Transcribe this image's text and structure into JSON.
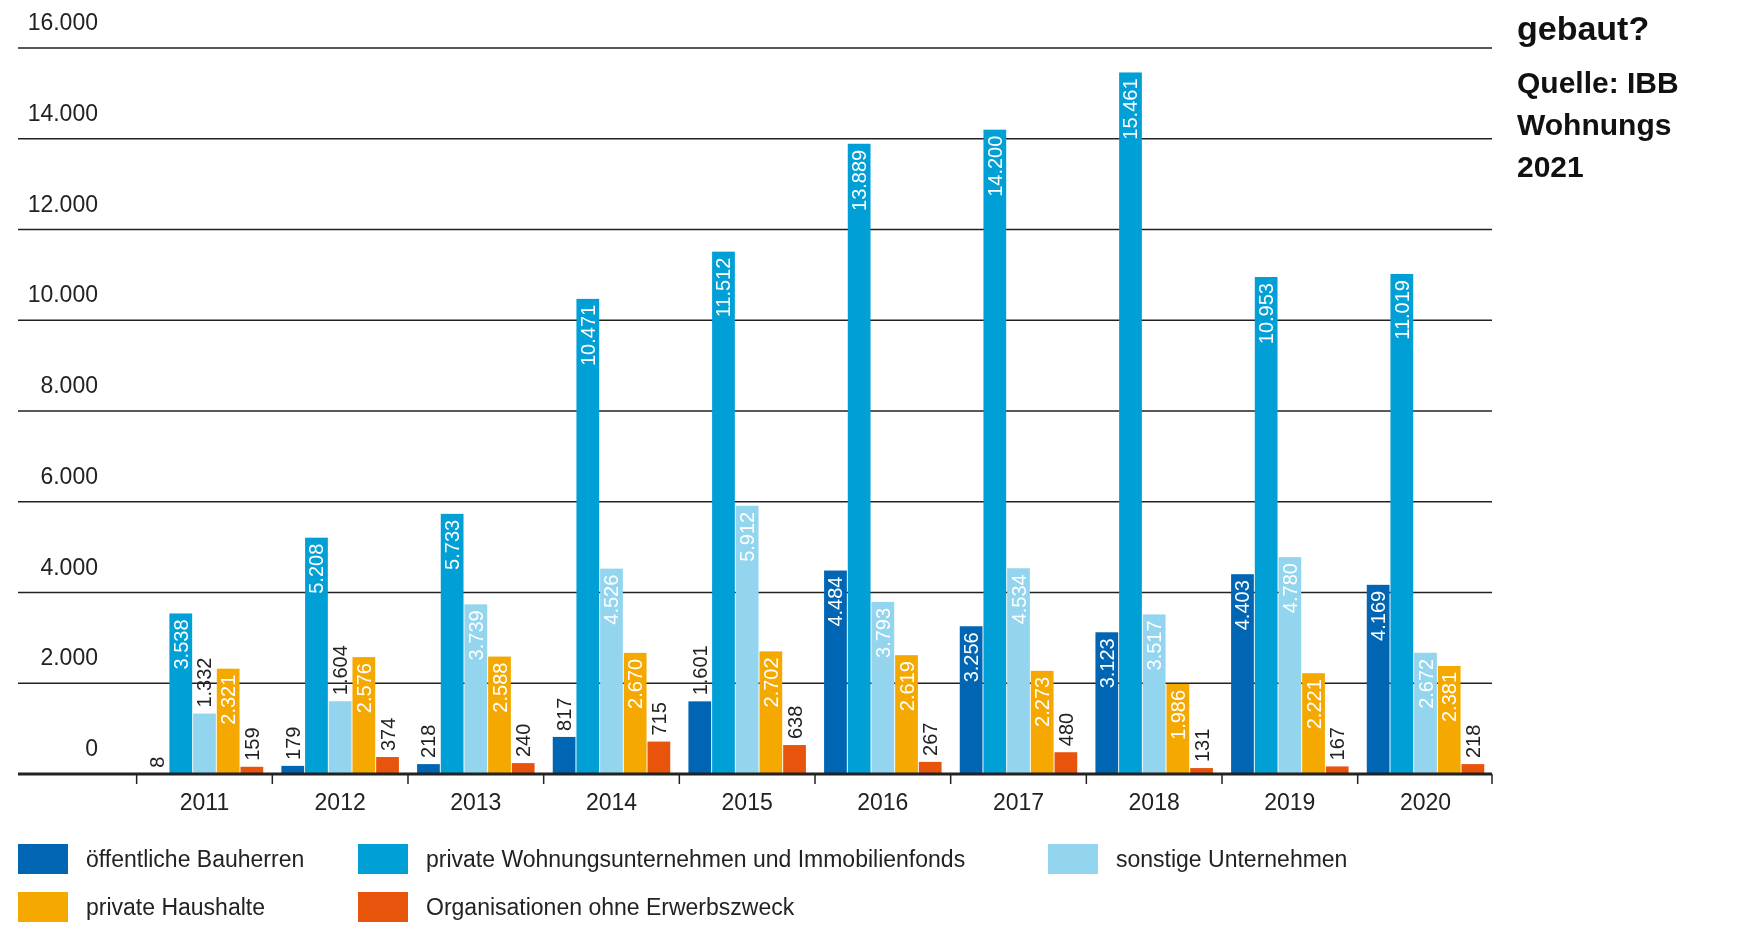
{
  "chart_data": {
    "type": "bar",
    "title": "gebaut?",
    "annotations": [
      "Quelle: IBB",
      "Wohnungs",
      "2021"
    ],
    "categories": [
      "2011",
      "2012",
      "2013",
      "2014",
      "2015",
      "2016",
      "2017",
      "2018",
      "2019",
      "2020"
    ],
    "ylim": [
      0,
      16000
    ],
    "yticks": [
      {
        "value": 0,
        "label": "0"
      },
      {
        "value": 2000,
        "label": "2.000"
      },
      {
        "value": 4000,
        "label": "4.000"
      },
      {
        "value": 6000,
        "label": "6.000"
      },
      {
        "value": 8000,
        "label": "8.000"
      },
      {
        "value": 10000,
        "label": "10.000"
      },
      {
        "value": 12000,
        "label": "12.000"
      },
      {
        "value": 14000,
        "label": "14.000"
      },
      {
        "value": 16000,
        "label": "16.000"
      }
    ],
    "grid": "y",
    "legend": "bottom",
    "series": [
      {
        "name": "öffentliche Bauherren",
        "color": "#0065b3",
        "values": [
          8,
          179,
          218,
          817,
          1601,
          4484,
          3256,
          3123,
          4403,
          4169
        ],
        "value_labels": [
          "8",
          "179",
          "218",
          "817",
          "1.601",
          "4.484",
          "3.256",
          "3.123",
          "4.403",
          "4.169"
        ]
      },
      {
        "name": "private Wohnungsunternehmen und Immobilienfonds",
        "color": "#009fd6",
        "values": [
          3538,
          5208,
          5733,
          10471,
          11512,
          13889,
          14200,
          15461,
          10953,
          11019
        ],
        "value_labels": [
          "3.538",
          "5.208",
          "5.733",
          "10.471",
          "11.512",
          "13.889",
          "14.200",
          "15.461",
          "10.953",
          "11.019"
        ]
      },
      {
        "name": "sonstige Unternehmen",
        "color": "#93d5ee",
        "values": [
          1332,
          1604,
          3739,
          4526,
          5912,
          3793,
          4534,
          3517,
          4780,
          2672
        ],
        "value_labels": [
          "1.332",
          "1.604",
          "3.739",
          "4.526",
          "5.912",
          "3.793",
          "4.534",
          "3.517",
          "4.780",
          "2.672"
        ]
      },
      {
        "name": "private Haushalte",
        "color": "#f5a800",
        "values": [
          2321,
          2576,
          2588,
          2670,
          2702,
          2619,
          2273,
          1986,
          2221,
          2381
        ],
        "value_labels": [
          "2.321",
          "2.576",
          "2.588",
          "2.670",
          "2.702",
          "2.619",
          "2.273",
          "1.986",
          "2.221",
          "2.381"
        ]
      },
      {
        "name": "Organisationen ohne Erwerbszweck",
        "color": "#e9540d",
        "values": [
          159,
          374,
          240,
          715,
          638,
          267,
          480,
          131,
          167,
          218
        ],
        "value_labels": [
          "159",
          "374",
          "240",
          "715",
          "638",
          "267",
          "480",
          "131",
          "167",
          "218"
        ]
      }
    ]
  }
}
